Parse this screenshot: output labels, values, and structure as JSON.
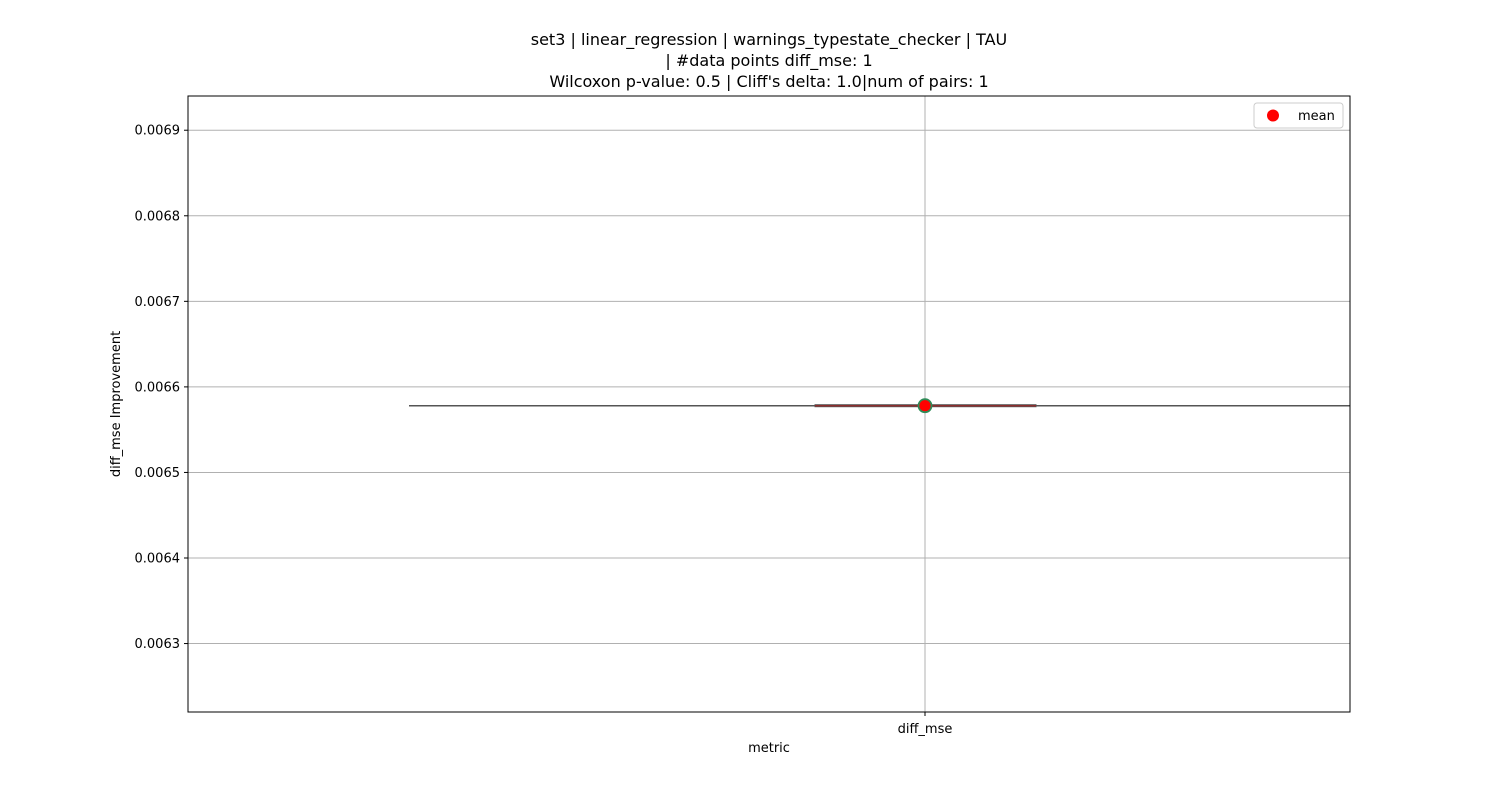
{
  "chart_data": {
    "type": "box",
    "title_lines": [
      "set3 | linear_regression | warnings_typestate_checker | TAU",
      "| #data points diff_mse: 1",
      "Wilcoxon p-value: 0.5 | Cliff's delta: 1.0|num of pairs: 1"
    ],
    "xlabel": "metric",
    "ylabel": "diff_mse Improvement",
    "categories": [
      "diff_mse"
    ],
    "ylim": [
      0.00622,
      0.00694
    ],
    "yticks": [
      0.0063,
      0.0064,
      0.0065,
      0.0066,
      0.0067,
      0.0068,
      0.0069
    ],
    "ytick_labels": [
      "0.0063",
      "0.0064",
      "0.0065",
      "0.0066",
      "0.0067",
      "0.0068",
      "0.0069"
    ],
    "boxes": [
      {
        "category": "diff_mse",
        "min": 0.006578,
        "q1": 0.006578,
        "median": 0.006578,
        "q3": 0.006578,
        "max": 0.006578,
        "mean": 0.006578
      }
    ],
    "legend": {
      "position": "upper right",
      "entries": [
        {
          "label": "mean",
          "marker": "circle",
          "color": "#ff0000"
        }
      ]
    },
    "grid": true,
    "colors": {
      "mean_fill": "#ff0000",
      "mean_edge": "#2e8b57",
      "median_line": "#8b2e2e",
      "whisker": "#555555",
      "grid": "#b0b0b0",
      "axes": "#000000"
    }
  }
}
